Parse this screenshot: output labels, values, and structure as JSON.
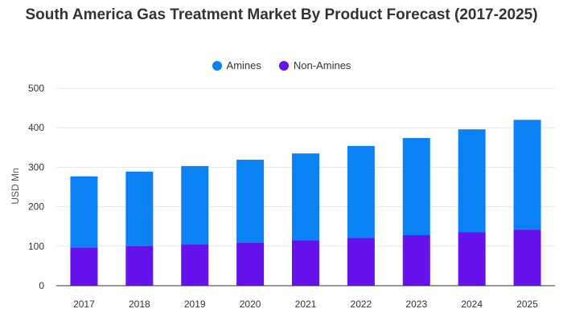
{
  "colors": {
    "amines": "#0a82f5",
    "non_amines": "#6512ec",
    "grid": "#e6e6e6",
    "axis": "#333333",
    "text": "#333333"
  },
  "chart_data": {
    "type": "bar",
    "stacked": true,
    "title": "South America Gas Treatment Market By Product Forecast (2017-2025)",
    "xlabel": "",
    "ylabel": "USD Mn",
    "ylim": [
      0,
      500
    ],
    "yticks": [
      0,
      100,
      200,
      300,
      400,
      500
    ],
    "grid": true,
    "legend_position": "top",
    "categories": [
      "2017",
      "2018",
      "2019",
      "2020",
      "2021",
      "2022",
      "2023",
      "2024",
      "2025"
    ],
    "series": [
      {
        "name": "Non-Amines",
        "color": "#6512ec",
        "values": [
          97,
          101,
          105,
          109,
          115,
          121,
          128,
          136,
          142
        ]
      },
      {
        "name": "Amines",
        "color": "#0a82f5",
        "values": [
          180,
          188,
          198,
          210,
          220,
          233,
          246,
          260,
          278
        ]
      }
    ]
  }
}
